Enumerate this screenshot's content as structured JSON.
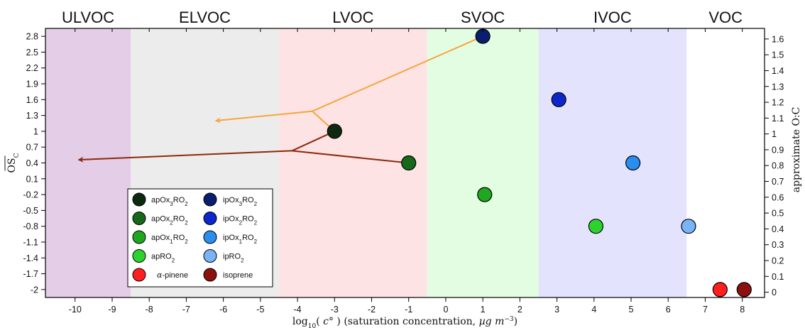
{
  "chart_data": {
    "type": "scatter",
    "title": "",
    "xlabel": "log₁₀( c° ) (saturation concentration, µg m⁻³)",
    "ylabel": "OS̅C",
    "y2label": "approximate O:C",
    "xlim": [
      -10.8,
      8.6
    ],
    "ylim": [
      -2.15,
      2.95
    ],
    "y2lim": [
      -0.0333,
      1.6667
    ],
    "grid": false,
    "legend_position": "lower-left",
    "x_ticks": [
      "-10",
      "-9",
      "-8",
      "-7",
      "-6",
      "-5",
      "-4",
      "-3",
      "-2",
      "-1",
      "0",
      "1",
      "2",
      "3",
      "4",
      "5",
      "6",
      "7",
      "8"
    ],
    "y_ticks": [
      "2.8",
      "2.5",
      "2.2",
      "1.9",
      "1.6",
      "1.3",
      "1",
      "0.7",
      "0.4",
      "0.1",
      "-0.2",
      "-0.5",
      "-0.8",
      "-1.1",
      "-1.4",
      "-1.7",
      "-2"
    ],
    "y2_ticks": [
      "1.6",
      "1.5",
      "1.4",
      "1.3",
      "1.2",
      "1.1",
      "1",
      "0.9",
      "0.8",
      "0.7",
      "0.6",
      "0.5",
      "0.4",
      "0.3",
      "0.2",
      "0.1",
      "0"
    ],
    "volatility_bands": [
      {
        "label": "ULVOC",
        "from": -10.8,
        "to": -8.5,
        "color": "#e4cde6"
      },
      {
        "label": "ELVOC",
        "from": -8.5,
        "to": -4.5,
        "color": "#ececec"
      },
      {
        "label": "LVOC",
        "from": -4.5,
        "to": -0.5,
        "color": "#fde3e3"
      },
      {
        "label": "SVOC",
        "from": -0.5,
        "to": 2.5,
        "color": "#e3fde3"
      },
      {
        "label": "IVOC",
        "from": 2.5,
        "to": 6.5,
        "color": "#e3e3fd"
      },
      {
        "label": "VOC",
        "from": 6.5,
        "to": 8.6,
        "color": "#ffffff"
      }
    ],
    "series": [
      {
        "name": "apOx3RO2",
        "color": "#0d2a10",
        "x": [
          -3.0
        ],
        "y": [
          1.0
        ]
      },
      {
        "name": "apOx2RO2",
        "color": "#17691a",
        "x": [
          -1.0
        ],
        "y": [
          0.4
        ]
      },
      {
        "name": "apOx1RO2",
        "color": "#1fa81f",
        "x": [
          1.05
        ],
        "y": [
          -0.2
        ]
      },
      {
        "name": "apRO2",
        "color": "#2dd32d",
        "x": [
          4.05
        ],
        "y": [
          -0.8
        ]
      },
      {
        "name": "α-pinene",
        "color": "#ff1f1f",
        "x": [
          7.4
        ],
        "y": [
          -2.0
        ]
      },
      {
        "name": "ipOx3RO2",
        "color": "#0b1d6e",
        "x": [
          1.0
        ],
        "y": [
          2.8
        ]
      },
      {
        "name": "ipOx2RO2",
        "color": "#0c26cc",
        "x": [
          3.05
        ],
        "y": [
          1.6
        ]
      },
      {
        "name": "ipOx1RO2",
        "color": "#2a8eef",
        "x": [
          5.05
        ],
        "y": [
          0.4
        ]
      },
      {
        "name": "ipRO2",
        "color": "#78b4f6",
        "x": [
          6.55
        ],
        "y": [
          -0.8
        ]
      },
      {
        "name": "isoprene",
        "color": "#8c1010",
        "x": [
          8.05
        ],
        "y": [
          -2.0
        ]
      }
    ],
    "arrows": [
      {
        "color": "#f7a53c",
        "points": [
          [
            1.0,
            2.8
          ],
          [
            -3.6,
            1.38
          ],
          [
            -3.0,
            1.0
          ]
        ],
        "from": [
          -3.6,
          1.38
        ],
        "to": [
          -6.2,
          1.2
        ]
      },
      {
        "color": "#8b2a0c",
        "points": [
          [
            -1.0,
            0.4
          ],
          [
            -4.15,
            0.63
          ],
          [
            -3.0,
            1.0
          ]
        ],
        "from": [
          -4.15,
          0.63
        ],
        "to": [
          -9.9,
          0.46
        ]
      }
    ]
  }
}
